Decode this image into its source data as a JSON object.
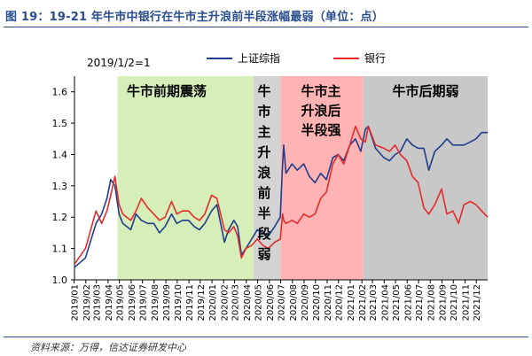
{
  "title": "图 19：19-21 年牛市中银行在牛市主升浪前半段涨幅最弱（单位：点）",
  "source": "资料来源：万得，信达证券研发中心",
  "colors": {
    "sse": "#1f3d8c",
    "bank": "#e32b2b",
    "bull_early": "#d6efb8",
    "main_first": "#d3d3d3",
    "main_second": "#ffb3b3",
    "bull_late": "#c8c8c8"
  },
  "chart_data": {
    "type": "line",
    "annotation": "2019/1/2=1",
    "ylim": [
      1.0,
      1.65
    ],
    "yticks": [
      "1.0",
      "1.1",
      "1.2",
      "1.3",
      "1.4",
      "1.5",
      "1.6"
    ],
    "x_range": [
      "2019/01/02",
      "2021/12/31"
    ],
    "xticks": [
      "2019/01",
      "2019/02",
      "2019/03",
      "2019/04",
      "2019/05",
      "2019/06",
      "2019/07",
      "2019/08",
      "2019/09",
      "2019/10",
      "2019/11",
      "2019/12",
      "2020/01",
      "2020/02",
      "2020/03",
      "2020/04",
      "2020/05",
      "2020/06",
      "2020/07",
      "2020/08",
      "2020/09",
      "2020/10",
      "2020/11",
      "2020/12",
      "2021/01",
      "2021/02",
      "2021/03",
      "2021/04",
      "2021/05",
      "2021/06",
      "2021/07",
      "2021/08",
      "2021/09",
      "2021/10",
      "2021/11",
      "2021/12"
    ],
    "phases": [
      {
        "label": "牛市前期震荡",
        "start": "2019/04/26",
        "end": "2020/04/20",
        "key": "bull_early"
      },
      {
        "label": "牛市主升浪前半段弱",
        "start": "2020/04/20",
        "end": "2020/07/01",
        "key": "main_first"
      },
      {
        "label": "牛市主升浪后半段强",
        "start": "2020/07/01",
        "end": "2021/02/05",
        "key": "main_second"
      },
      {
        "label": "牛市后期弱",
        "start": "2021/02/05",
        "end": "2021/12/31",
        "key": "bull_late"
      }
    ],
    "series": [
      {
        "name": "上证综指",
        "key": "sse",
        "x": [
          "2019/01/02",
          "2019/01/31",
          "2019/02/28",
          "2019/03/15",
          "2019/03/29",
          "2019/04/08",
          "2019/04/19",
          "2019/04/30",
          "2019/05/10",
          "2019/05/31",
          "2019/06/14",
          "2019/06/28",
          "2019/07/15",
          "2019/07/31",
          "2019/08/15",
          "2019/08/30",
          "2019/09/16",
          "2019/09/30",
          "2019/10/15",
          "2019/10/31",
          "2019/11/15",
          "2019/11/29",
          "2019/12/13",
          "2019/12/31",
          "2020/01/14",
          "2020/02/03",
          "2020/02/14",
          "2020/02/28",
          "2020/03/09",
          "2020/03/19",
          "2020/03/31",
          "2020/04/15",
          "2020/04/30",
          "2020/05/15",
          "2020/05/29",
          "2020/06/15",
          "2020/06/30",
          "2020/07/06",
          "2020/07/09",
          "2020/07/15",
          "2020/07/31",
          "2020/08/14",
          "2020/08/31",
          "2020/09/15",
          "2020/09/30",
          "2020/10/15",
          "2020/10/30",
          "2020/11/16",
          "2020/11/30",
          "2020/12/15",
          "2020/12/31",
          "2021/01/15",
          "2021/01/29",
          "2021/02/10",
          "2021/02/18",
          "2021/03/09",
          "2021/03/31",
          "2021/04/15",
          "2021/04/30",
          "2021/05/14",
          "2021/05/31",
          "2021/06/15",
          "2021/06/30",
          "2021/07/15",
          "2021/07/28",
          "2021/08/13",
          "2021/08/31",
          "2021/09/14",
          "2021/09/30",
          "2021/10/15",
          "2021/10/29",
          "2021/11/15",
          "2021/11/30",
          "2021/12/15",
          "2021/12/31"
        ],
        "values": [
          1.04,
          1.07,
          1.18,
          1.21,
          1.26,
          1.32,
          1.3,
          1.21,
          1.18,
          1.16,
          1.21,
          1.19,
          1.18,
          1.18,
          1.15,
          1.17,
          1.21,
          1.18,
          1.19,
          1.19,
          1.17,
          1.16,
          1.18,
          1.22,
          1.24,
          1.12,
          1.16,
          1.19,
          1.17,
          1.08,
          1.1,
          1.13,
          1.16,
          1.15,
          1.14,
          1.17,
          1.2,
          1.37,
          1.43,
          1.34,
          1.37,
          1.35,
          1.37,
          1.33,
          1.31,
          1.34,
          1.32,
          1.39,
          1.4,
          1.38,
          1.43,
          1.45,
          1.41,
          1.48,
          1.49,
          1.42,
          1.39,
          1.38,
          1.4,
          1.41,
          1.45,
          1.43,
          1.42,
          1.42,
          1.35,
          1.41,
          1.43,
          1.45,
          1.43,
          1.43,
          1.43,
          1.44,
          1.45,
          1.47,
          1.47
        ]
      },
      {
        "name": "银行",
        "key": "bank",
        "x": [
          "2019/01/02",
          "2019/01/31",
          "2019/02/28",
          "2019/03/15",
          "2019/03/29",
          "2019/04/08",
          "2019/04/19",
          "2019/04/30",
          "2019/05/10",
          "2019/05/31",
          "2019/06/14",
          "2019/06/28",
          "2019/07/15",
          "2019/07/31",
          "2019/08/15",
          "2019/08/30",
          "2019/09/16",
          "2019/09/30",
          "2019/10/15",
          "2019/10/31",
          "2019/11/15",
          "2019/11/29",
          "2019/12/13",
          "2019/12/31",
          "2020/01/14",
          "2020/02/03",
          "2020/02/14",
          "2020/02/28",
          "2020/03/09",
          "2020/03/19",
          "2020/03/31",
          "2020/04/15",
          "2020/04/30",
          "2020/05/15",
          "2020/05/29",
          "2020/06/15",
          "2020/06/30",
          "2020/07/06",
          "2020/07/09",
          "2020/07/15",
          "2020/07/31",
          "2020/08/14",
          "2020/08/31",
          "2020/09/15",
          "2020/09/30",
          "2020/10/15",
          "2020/10/30",
          "2020/11/16",
          "2020/11/30",
          "2020/12/15",
          "2020/12/31",
          "2021/01/15",
          "2021/01/29",
          "2021/02/10",
          "2021/02/18",
          "2021/03/09",
          "2021/03/31",
          "2021/04/15",
          "2021/04/30",
          "2021/05/14",
          "2021/05/31",
          "2021/06/15",
          "2021/06/30",
          "2021/07/15",
          "2021/07/28",
          "2021/08/13",
          "2021/08/31",
          "2021/09/14",
          "2021/09/30",
          "2021/10/15",
          "2021/10/29",
          "2021/11/15",
          "2021/11/30",
          "2021/12/15",
          "2021/12/31"
        ],
        "values": [
          1.05,
          1.1,
          1.22,
          1.18,
          1.22,
          1.27,
          1.33,
          1.24,
          1.21,
          1.19,
          1.22,
          1.26,
          1.23,
          1.21,
          1.19,
          1.2,
          1.25,
          1.21,
          1.22,
          1.22,
          1.2,
          1.19,
          1.21,
          1.27,
          1.26,
          1.16,
          1.15,
          1.17,
          1.14,
          1.07,
          1.1,
          1.11,
          1.13,
          1.11,
          1.1,
          1.12,
          1.13,
          1.21,
          1.19,
          1.18,
          1.19,
          1.18,
          1.21,
          1.2,
          1.21,
          1.26,
          1.28,
          1.37,
          1.4,
          1.37,
          1.43,
          1.49,
          1.45,
          1.44,
          1.49,
          1.43,
          1.42,
          1.41,
          1.43,
          1.4,
          1.38,
          1.33,
          1.31,
          1.23,
          1.21,
          1.24,
          1.29,
          1.21,
          1.22,
          1.18,
          1.24,
          1.25,
          1.24,
          1.22,
          1.2
        ]
      }
    ]
  }
}
